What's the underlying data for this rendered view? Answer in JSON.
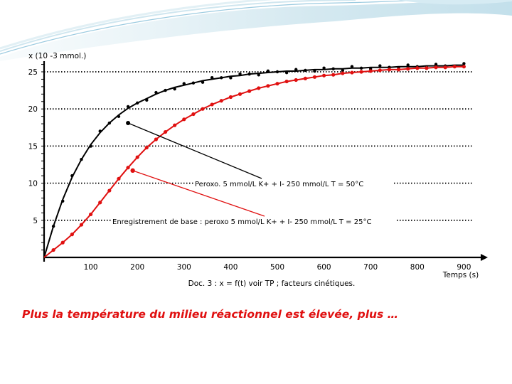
{
  "chart_data": {
    "type": "line",
    "y_axis_unit_label": "x (10 -3 mmol.)",
    "xlabel": "Temps (s)",
    "x_ticks": [
      100,
      200,
      300,
      400,
      500,
      600,
      700,
      800,
      900
    ],
    "y_ticks": [
      5,
      10,
      15,
      20,
      25
    ],
    "xlim": [
      0,
      900
    ],
    "ylim": [
      0,
      27
    ],
    "grid": "dotted horizontal lines",
    "doc_caption": "Doc. 3 : x = f(t) voir TP ; facteurs cinétiques.",
    "annotations": [
      {
        "text": "Peroxo. 5 mmol/L K+ + I- 250 mmol/L T = 50°C",
        "series": 0
      },
      {
        "text": "Enregistrement de base : peroxo 5 mmol/L K+ + I- 250 mmol/L T = 25°C",
        "series": 1
      }
    ],
    "series": [
      {
        "color": "#000000",
        "x": [
          0,
          20,
          40,
          60,
          80,
          100,
          120,
          140,
          160,
          180,
          200,
          220,
          240,
          260,
          280,
          300,
          320,
          340,
          360,
          380,
          400,
          420,
          440,
          460,
          480,
          500,
          520,
          540,
          560,
          580,
          600,
          620,
          640,
          660,
          680,
          700,
          720,
          740,
          760,
          780,
          800,
          820,
          840,
          860,
          880,
          900
        ],
        "y": [
          0,
          4.2,
          7.8,
          10.8,
          13.2,
          15.2,
          16.8,
          18.1,
          19.2,
          20.1,
          20.8,
          21.4,
          22.0,
          22.5,
          22.9,
          23.2,
          23.5,
          23.8,
          24.0,
          24.2,
          24.4,
          24.5,
          24.7,
          24.8,
          24.9,
          25.0,
          25.1,
          25.1,
          25.2,
          25.3,
          25.3,
          25.4,
          25.4,
          25.5,
          25.5,
          25.6,
          25.6,
          25.6,
          25.7,
          25.7,
          25.7,
          25.8,
          25.8,
          25.8,
          25.9,
          25.9
        ]
      },
      {
        "color": "#e01010",
        "x": [
          0,
          20,
          40,
          60,
          80,
          100,
          120,
          140,
          160,
          180,
          200,
          220,
          240,
          260,
          280,
          300,
          320,
          340,
          360,
          380,
          400,
          420,
          440,
          460,
          480,
          500,
          520,
          540,
          560,
          580,
          600,
          620,
          640,
          660,
          680,
          700,
          720,
          740,
          760,
          780,
          800,
          820,
          840,
          860,
          880,
          900
        ],
        "y": [
          0,
          1.0,
          2.0,
          3.1,
          4.4,
          5.8,
          7.4,
          9.0,
          10.6,
          12.1,
          13.5,
          14.8,
          15.9,
          16.9,
          17.8,
          18.6,
          19.3,
          20.0,
          20.6,
          21.1,
          21.6,
          22.0,
          22.4,
          22.8,
          23.1,
          23.4,
          23.7,
          23.9,
          24.1,
          24.3,
          24.5,
          24.6,
          24.8,
          24.9,
          25.0,
          25.1,
          25.2,
          25.3,
          25.3,
          25.4,
          25.5,
          25.5,
          25.6,
          25.6,
          25.7,
          25.7
        ]
      }
    ]
  },
  "slide": {
    "caption": "Plus la température du milieu réactionnel est élevée, plus …"
  }
}
